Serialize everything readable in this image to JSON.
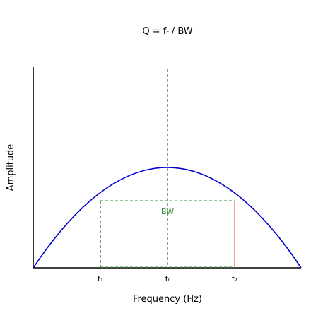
{
  "title": "Q = fᵣ / BW",
  "axes": {
    "xlabel": "Frequency (Hz)",
    "ylabel": "Amplitude"
  },
  "markers": {
    "f1": "f₁",
    "fr": "fᵣ",
    "f2": "f₂"
  },
  "bandwidth": {
    "label": "BW",
    "color": "#2e8b2e"
  },
  "colors": {
    "curve": "#0000cc",
    "axis": "#000000",
    "center_line": "#555555",
    "f1_line": "#556b2f",
    "f2_line": "#e07a6a",
    "box": "#5fa55f"
  }
}
